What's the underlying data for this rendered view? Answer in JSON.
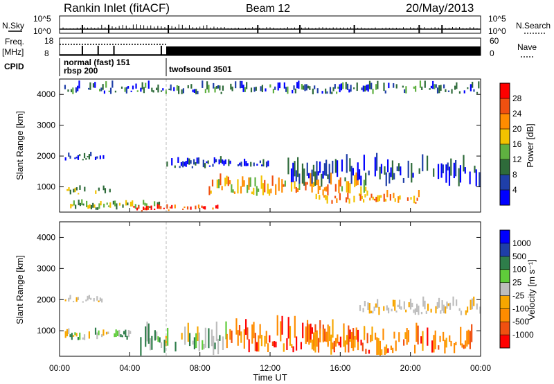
{
  "header": {
    "station": "Rankin Inlet (fitACF)",
    "beam": "Beam 12",
    "date": "20/May/2013"
  },
  "panels": {
    "nsky": {
      "label": "N.Sky",
      "ticks": [
        "10^5",
        "10^0"
      ],
      "right_label": "N.Search",
      "right_ticks": [
        "10^5",
        "10^0"
      ]
    },
    "freq": {
      "label": "Freq.",
      "unit": "[MHz]",
      "ticks": [
        "18",
        "8"
      ],
      "right_label": "Nave",
      "right_ticks": [
        "60",
        "0"
      ]
    },
    "cpid": {
      "label": "CPID",
      "modes": [
        "normal (fast) 151",
        "rbsp 200",
        "twofsound 3501"
      ]
    }
  },
  "colors": {
    "power": [
      "#0000ff",
      "#1f3fa8",
      "#2e6b3a",
      "#5fb040",
      "#f2c200",
      "#ff8c00",
      "#f05010",
      "#ff0000"
    ],
    "velocity": [
      "#ff0000",
      "#f05010",
      "#ff8c00",
      "#f7a600",
      "#bdbdbd",
      "#5fcc3a",
      "#2e7d4a",
      "#1f3fa8",
      "#0000ff"
    ]
  },
  "chart_data": [
    {
      "type": "heatmap",
      "title": "Power",
      "ylabel": "Slant Range [km]",
      "y_ticks": [
        "1000",
        "2000",
        "3000",
        "4000"
      ],
      "ylim": [
        180,
        4500
      ],
      "colorbar_label": "Power [dB]",
      "colorbar_ticks": [
        "4",
        "8",
        "12",
        "16",
        "20",
        "24",
        "28"
      ],
      "colorbar_range": [
        0,
        32
      ],
      "bands": [
        {
          "t0": 0.6,
          "t1": 5.8,
          "r0": 250,
          "r1": 600,
          "v": 14
        },
        {
          "t0": 4.2,
          "t1": 9.0,
          "r0": 200,
          "r1": 450,
          "v": 27
        },
        {
          "t0": 0.4,
          "t1": 3.0,
          "r0": 750,
          "r1": 1100,
          "v": 14
        },
        {
          "t0": 8.5,
          "t1": 17.5,
          "r0": 700,
          "r1": 1500,
          "v": 20
        },
        {
          "t0": 14.5,
          "t1": 20.5,
          "r0": 450,
          "r1": 900,
          "v": 22
        },
        {
          "t0": 13.0,
          "t1": 24.0,
          "r0": 1000,
          "r1": 2100,
          "v": 6
        },
        {
          "t0": 0.3,
          "t1": 2.5,
          "r0": 1850,
          "r1": 2150,
          "v": 5
        },
        {
          "t0": 6.0,
          "t1": 12.0,
          "r0": 1600,
          "r1": 2000,
          "v": 5
        },
        {
          "t0": 0.0,
          "t1": 24.0,
          "r0": 4000,
          "r1": 4450,
          "v": 8
        }
      ]
    },
    {
      "type": "heatmap",
      "title": "Velocity",
      "ylabel": "Slant Range [km]",
      "y_ticks": [
        "1000",
        "2000",
        "3000",
        "4000"
      ],
      "ylim": [
        180,
        4500
      ],
      "colorbar_label": "Velocity [m s⁻¹]",
      "colorbar_ticks": [
        "1000",
        "500",
        "100",
        "25",
        "-25",
        "-100",
        "-500",
        "-1000"
      ],
      "bands": [
        {
          "t0": 0.3,
          "t1": 4.0,
          "r0": 700,
          "r1": 1100,
          "v": "green"
        },
        {
          "t0": 4.5,
          "t1": 9.5,
          "r0": 200,
          "r1": 1300,
          "v": "green"
        },
        {
          "t0": 9.5,
          "t1": 17.5,
          "r0": 300,
          "r1": 1500,
          "v": "orange"
        },
        {
          "t0": 14.0,
          "t1": 23.5,
          "r0": 200,
          "r1": 1300,
          "v": "orange"
        },
        {
          "t0": 17.0,
          "t1": 24.0,
          "r0": 1500,
          "r1": 2100,
          "v": "gray"
        },
        {
          "t0": 0.3,
          "t1": 2.5,
          "r0": 1900,
          "r1": 2150,
          "v": "gray"
        }
      ]
    }
  ],
  "x_axis": {
    "label": "Time UT",
    "ticks": [
      "00:00",
      "04:00",
      "08:00",
      "12:00",
      "16:00",
      "20:00",
      "00:00"
    ],
    "range_hours": [
      0,
      24
    ]
  }
}
